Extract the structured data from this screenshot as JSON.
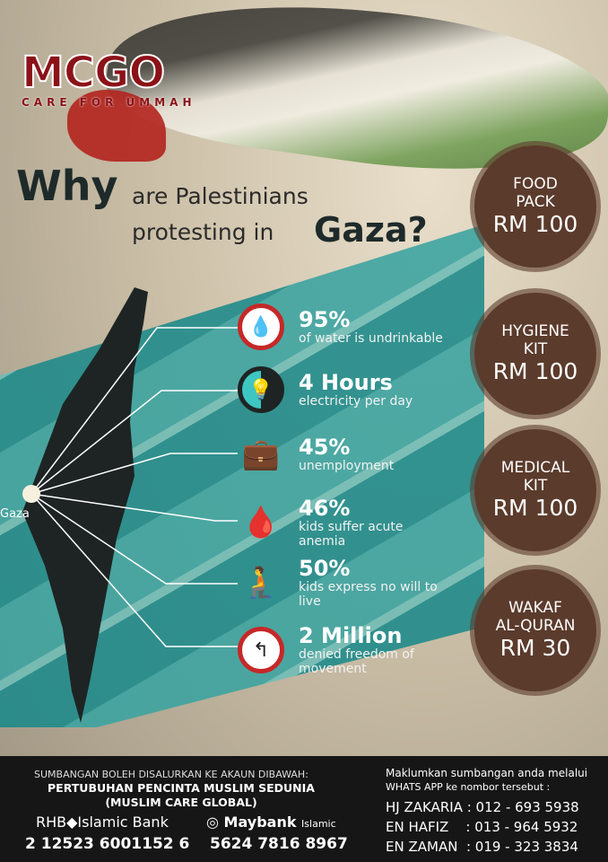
{
  "logo": {
    "name": "MCGO",
    "tagline": "CARE FOR UMMAH"
  },
  "title": {
    "why": "Why",
    "line1": "are Palestinians",
    "line2": "protesting in",
    "gaza": "Gaza?"
  },
  "map_label": "Gaza",
  "stats": [
    {
      "icon": "no-water-icon",
      "value": "95%",
      "label": "of water is undrinkable"
    },
    {
      "icon": "lightbulb-clock-icon",
      "value": "4 Hours",
      "label": "electricity per day"
    },
    {
      "icon": "briefcase-no-icon",
      "value": "45%",
      "label": "unemployment"
    },
    {
      "icon": "blood-drop-icon",
      "value": "46%",
      "label": "kids suffer acute anemia"
    },
    {
      "icon": "sad-child-icon",
      "value": "50%",
      "label": "kids express no will to live"
    },
    {
      "icon": "no-turn-icon",
      "value": "2 Million",
      "label": "denied freedom of movement"
    }
  ],
  "badges": [
    {
      "line1": "FOOD",
      "line2": "PACK",
      "price": "RM 100"
    },
    {
      "line1": "HYGIENE",
      "line2": "KIT",
      "price": "RM 100"
    },
    {
      "line1": "MEDICAL",
      "line2": "KIT",
      "price": "RM 100"
    },
    {
      "line1": "WAKAF",
      "line2": "AL-QURAN",
      "price": "RM 30"
    }
  ],
  "footer": {
    "intro": "SUMBANGAN BOLEH DISALURKAN KE AKAUN DIBAWAH:",
    "org1": "PERTUBUHAN PENCINTA MUSLIM SEDUNIA",
    "org2": "(MUSLIM CARE GLOBAL)",
    "bank1": "RHB◆Islamic Bank",
    "acc1": "2 12523 6001152 6",
    "bank2": "Maybank",
    "bank2_suffix": "Islamic",
    "acc2": "5624 7816 8967",
    "notify1": "Maklumkan sumbangan anda melalui",
    "notify2": "WHATS APP ke nombor tersebut :",
    "contacts": [
      "HJ ZAKARIA : 012 - 693 5938",
      "EN HAFIZ    : 013 - 964 5932",
      "EN ZAMAN  : 019 - 323 3834"
    ]
  },
  "colors": {
    "badge": "#5b3b2c",
    "logo": "#8b1218",
    "teal": "#1c8a8a"
  }
}
